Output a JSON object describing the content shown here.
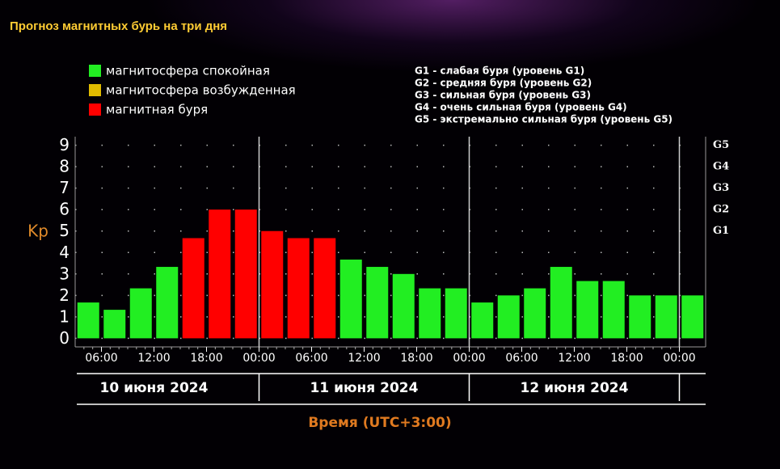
{
  "chart_data": {
    "type": "bar",
    "title": "Прогноз магнитных бурь на три дня",
    "legend": [
      {
        "label": "магнитосфера спокойная",
        "color": "#22ee22"
      },
      {
        "label": "магнитосфера возбужденная",
        "color": "#e0bb00"
      },
      {
        "label": "магнитная буря",
        "color": "#ff0000"
      }
    ],
    "g_legend": [
      "G1 - слабая буря (уровень G1)",
      "G2 - средняя буря (уровень G2)",
      "G3 - сильная буря (уровень G3)",
      "G4 - очень сильная буря (уровень G4)",
      "G5 - экстремально сильная буря (уровень G5)"
    ],
    "y_label": "Kp",
    "x_label": "Время (UTC+3:00)",
    "x": [
      4.5,
      7.5,
      10.5,
      13.5,
      16.5,
      19.5,
      22.5,
      25.5,
      28.5,
      31.5,
      34.5,
      37.5,
      40.5,
      43.5,
      46.5,
      49.5,
      52.5,
      55.5,
      58.5,
      61.5,
      64.5,
      67.5,
      70.5,
      73.5
    ],
    "values": [
      1.67,
      1.33,
      2.33,
      3.33,
      4.67,
      6,
      6,
      5,
      4.67,
      4.67,
      3.67,
      3.33,
      3,
      2.33,
      2.33,
      1.67,
      2,
      2.33,
      3.33,
      2.67,
      2.67,
      2,
      2,
      2
    ],
    "colors": [
      "#22ee22",
      "#22ee22",
      "#22ee22",
      "#22ee22",
      "#ff0000",
      "#ff0000",
      "#ff0000",
      "#ff0000",
      "#ff0000",
      "#ff0000",
      "#22ee22",
      "#22ee22",
      "#22ee22",
      "#22ee22",
      "#22ee22",
      "#22ee22",
      "#22ee22",
      "#22ee22",
      "#22ee22",
      "#22ee22",
      "#22ee22",
      "#22ee22",
      "#22ee22",
      "#22ee22"
    ],
    "xlim": [
      3,
      75
    ],
    "xticks": [
      {
        "value": 6,
        "label": "06:00"
      },
      {
        "value": 12,
        "label": "12:00"
      },
      {
        "value": 18,
        "label": "18:00"
      },
      {
        "value": 24,
        "label": "00:00"
      },
      {
        "value": 30,
        "label": "06:00"
      },
      {
        "value": 36,
        "label": "12:00"
      },
      {
        "value": 42,
        "label": "18:00"
      },
      {
        "value": 48,
        "label": "00:00"
      },
      {
        "value": 54,
        "label": "06:00"
      },
      {
        "value": 60,
        "label": "12:00"
      },
      {
        "value": 66,
        "label": "18:00"
      },
      {
        "value": 72,
        "label": "00:00"
      }
    ],
    "days": [
      "10 июня 2024",
      "11 июня 2024",
      "12 июня 2024"
    ],
    "ylim": [
      -0.4,
      9.4
    ],
    "yticks": [
      0,
      1,
      2,
      3,
      4,
      5,
      6,
      7,
      8,
      9
    ],
    "y2lim": [
      -0.4,
      9.4
    ],
    "y2ticks": [
      {
        "value": 5,
        "label": "G1"
      },
      {
        "value": 6,
        "label": "G2"
      },
      {
        "value": 7,
        "label": "G3"
      },
      {
        "value": 8,
        "label": "G4"
      },
      {
        "value": 9,
        "label": "G5"
      }
    ],
    "grid": true
  }
}
